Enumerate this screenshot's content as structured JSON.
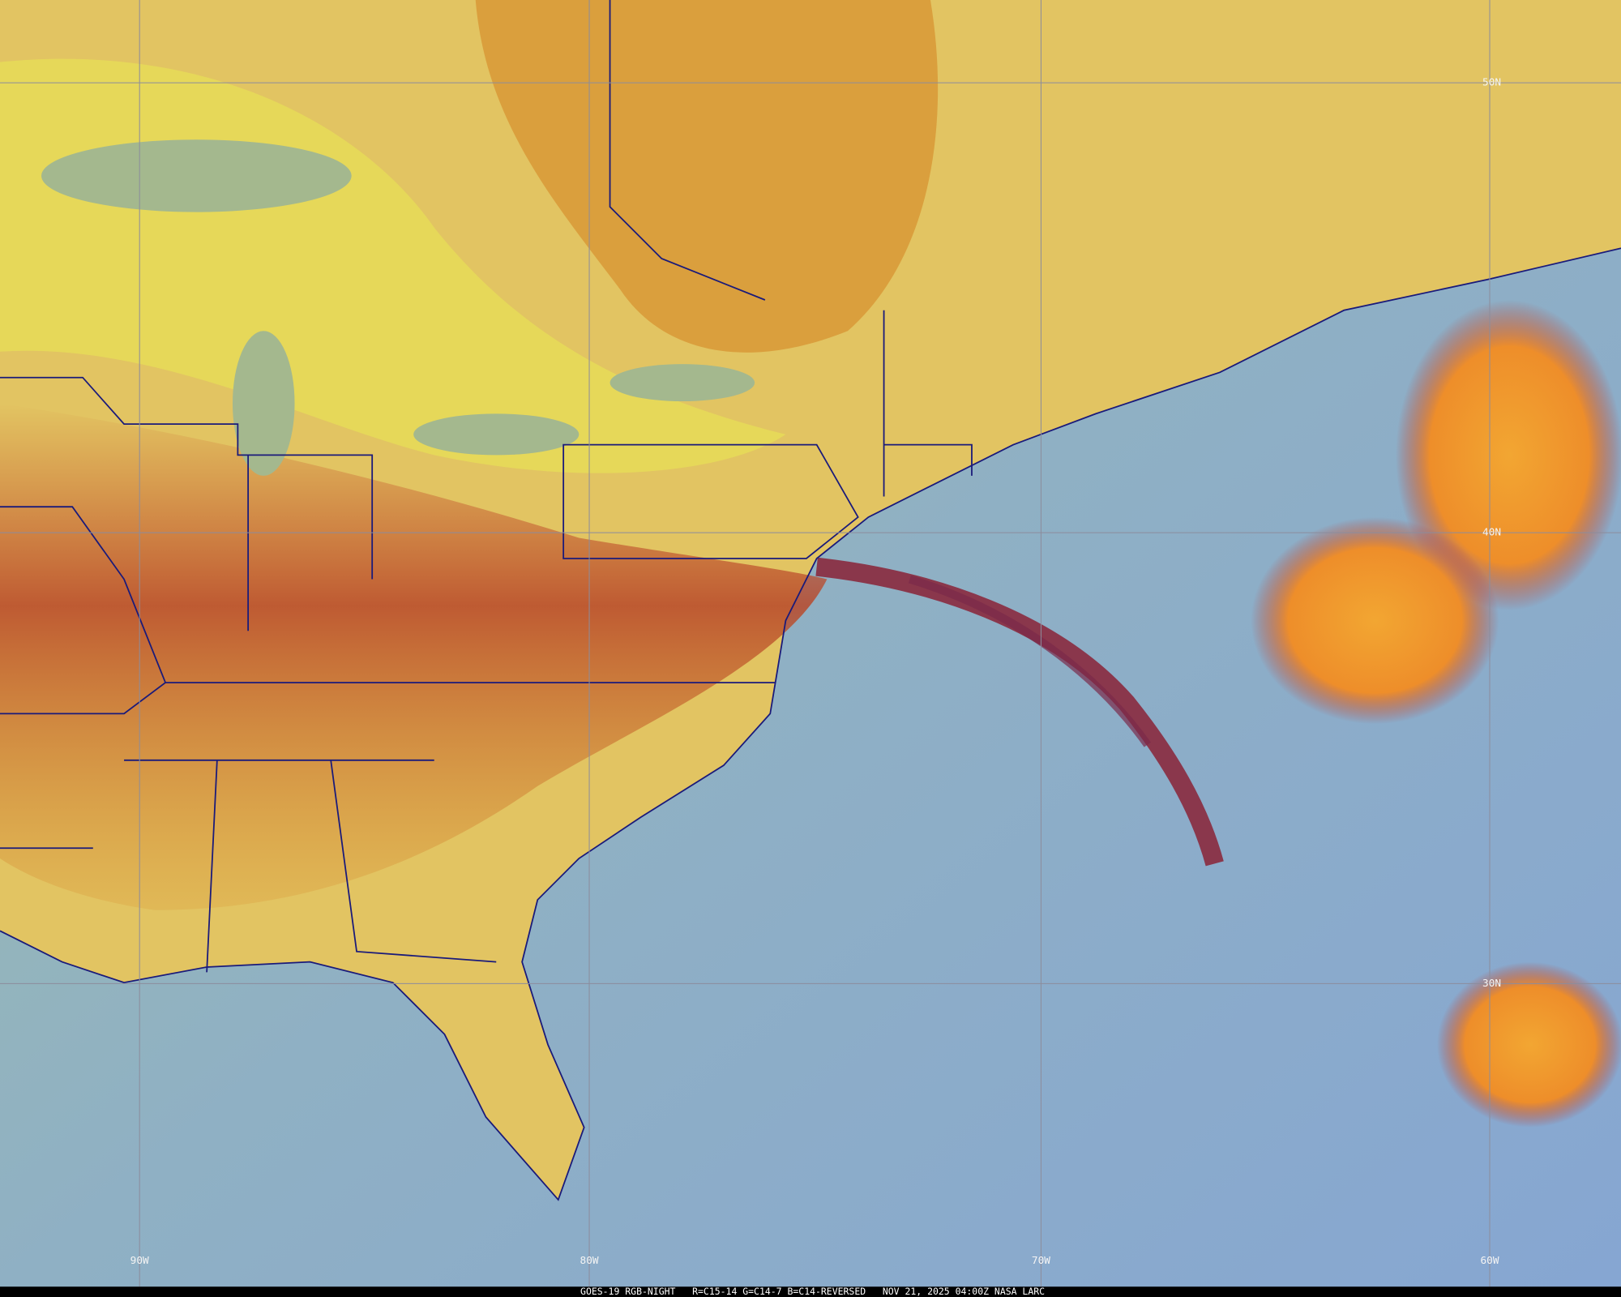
{
  "map": {
    "longitude_labels": [
      "90W",
      "80W",
      "70W",
      "60W"
    ],
    "latitude_labels": [
      "50N",
      "40N",
      "30N"
    ]
  },
  "footer": "GOES-19 RGB-NIGHT   R=C15-14 G=C14-7 B=C14-REVERSED   NOV 21, 2025 04:00Z NASA LARC"
}
